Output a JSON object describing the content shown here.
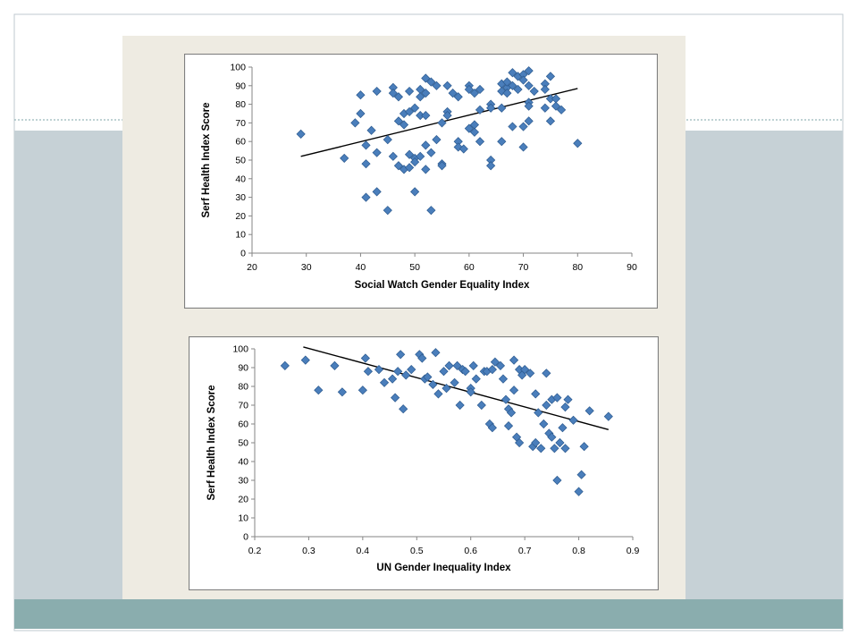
{
  "colors": {
    "slide_border": "#bfc9cf",
    "band_light": "#c6d1d6",
    "band_dark": "#8aadae",
    "dashed_line": "#7fa6a8",
    "panel": "#eeebe2",
    "marker_fill": "#4a7ebb",
    "marker_stroke": "#2c5a8f",
    "trendline": "#000000"
  },
  "chart_data": [
    {
      "type": "scatter",
      "title": "",
      "xlabel": "Social Watch Gender Equality Index",
      "ylabel": "Serf Health Index Score",
      "xlim": [
        20,
        90
      ],
      "ylim": [
        0,
        100
      ],
      "x_ticks": [
        20,
        30,
        40,
        50,
        60,
        70,
        80,
        90
      ],
      "y_ticks": [
        0,
        10,
        20,
        30,
        40,
        50,
        60,
        70,
        80,
        90,
        100
      ],
      "x_tick_labels": [
        "20",
        "30",
        "40",
        "50",
        "60",
        "70",
        "80",
        "90"
      ],
      "y_tick_labels": [
        "0",
        "10",
        "20",
        "30",
        "40",
        "50",
        "60",
        "70",
        "80",
        "90",
        "100"
      ],
      "grid": false,
      "legend": "none",
      "trendline": {
        "x": [
          29,
          80
        ],
        "y": [
          52,
          88.5
        ]
      },
      "points": [
        [
          29,
          64
        ],
        [
          37,
          51
        ],
        [
          39,
          70
        ],
        [
          40,
          85
        ],
        [
          40,
          75
        ],
        [
          41,
          58
        ],
        [
          41,
          48
        ],
        [
          41,
          30
        ],
        [
          42,
          66
        ],
        [
          43,
          87
        ],
        [
          43,
          33
        ],
        [
          43,
          54
        ],
        [
          45,
          61
        ],
        [
          45,
          23
        ],
        [
          46,
          89
        ],
        [
          46,
          86
        ],
        [
          46,
          52
        ],
        [
          47,
          84
        ],
        [
          47,
          71
        ],
        [
          47,
          47
        ],
        [
          48,
          75
        ],
        [
          48,
          69
        ],
        [
          48,
          45
        ],
        [
          49,
          87
        ],
        [
          49,
          76
        ],
        [
          49,
          53
        ],
        [
          49,
          46
        ],
        [
          50,
          78
        ],
        [
          50,
          51
        ],
        [
          50,
          49
        ],
        [
          50,
          33
        ],
        [
          51,
          88
        ],
        [
          51,
          84
        ],
        [
          51,
          74
        ],
        [
          51,
          52
        ],
        [
          52,
          94
        ],
        [
          52,
          86
        ],
        [
          52,
          74
        ],
        [
          52,
          58
        ],
        [
          52,
          45
        ],
        [
          53,
          92
        ],
        [
          53,
          54
        ],
        [
          53,
          23
        ],
        [
          54,
          90
        ],
        [
          54,
          61
        ],
        [
          55,
          70
        ],
        [
          55,
          48
        ],
        [
          55,
          47
        ],
        [
          56,
          90
        ],
        [
          56,
          76
        ],
        [
          56,
          74
        ],
        [
          57,
          86
        ],
        [
          58,
          84
        ],
        [
          58,
          60
        ],
        [
          58,
          57
        ],
        [
          59,
          56
        ],
        [
          60,
          90
        ],
        [
          60,
          88
        ],
        [
          60,
          67
        ],
        [
          61,
          86
        ],
        [
          61,
          69
        ],
        [
          61,
          65
        ],
        [
          62,
          88
        ],
        [
          62,
          77
        ],
        [
          62,
          60
        ],
        [
          64,
          80
        ],
        [
          64,
          78
        ],
        [
          64,
          50
        ],
        [
          64,
          47
        ],
        [
          66,
          91
        ],
        [
          66,
          87
        ],
        [
          66,
          78
        ],
        [
          66,
          60
        ],
        [
          67,
          89
        ],
        [
          67,
          86
        ],
        [
          67,
          92
        ],
        [
          68,
          97
        ],
        [
          68,
          90
        ],
        [
          68,
          68
        ],
        [
          69,
          95
        ],
        [
          69,
          88
        ],
        [
          70,
          96
        ],
        [
          70,
          93
        ],
        [
          70,
          68
        ],
        [
          70,
          57
        ],
        [
          71,
          98
        ],
        [
          71,
          90
        ],
        [
          71,
          81
        ],
        [
          71,
          79
        ],
        [
          71,
          71
        ],
        [
          72,
          87
        ],
        [
          74,
          91
        ],
        [
          74,
          88
        ],
        [
          74,
          78
        ],
        [
          75,
          95
        ],
        [
          75,
          83
        ],
        [
          75,
          71
        ],
        [
          76,
          83
        ],
        [
          76,
          79
        ],
        [
          77,
          77
        ],
        [
          80,
          59
        ]
      ]
    },
    {
      "type": "scatter",
      "title": "",
      "xlabel": "UN Gender Inequality Index",
      "ylabel": "Serf Health Index Score",
      "xlim": [
        0.2,
        0.9
      ],
      "ylim": [
        0,
        100
      ],
      "x_ticks": [
        0.2,
        0.3,
        0.4,
        0.5,
        0.6,
        0.7,
        0.8,
        0.9
      ],
      "y_ticks": [
        0,
        10,
        20,
        30,
        40,
        50,
        60,
        70,
        80,
        90,
        100
      ],
      "x_tick_labels": [
        "0.2",
        "0.3",
        "0.4",
        "0.5",
        "0.6",
        "0.7",
        "0.8",
        "0.9"
      ],
      "y_tick_labels": [
        "0",
        "10",
        "20",
        "30",
        "40",
        "50",
        "60",
        "70",
        "80",
        "90",
        "100"
      ],
      "grid": false,
      "legend": "none",
      "trendline": {
        "x": [
          0.29,
          0.855
        ],
        "y": [
          101,
          57
        ]
      },
      "points": [
        [
          0.256,
          91
        ],
        [
          0.294,
          94
        ],
        [
          0.318,
          78
        ],
        [
          0.348,
          91
        ],
        [
          0.362,
          77
        ],
        [
          0.4,
          78
        ],
        [
          0.405,
          95
        ],
        [
          0.41,
          88
        ],
        [
          0.43,
          89
        ],
        [
          0.44,
          82
        ],
        [
          0.455,
          84
        ],
        [
          0.46,
          74
        ],
        [
          0.465,
          88
        ],
        [
          0.47,
          97
        ],
        [
          0.475,
          68
        ],
        [
          0.48,
          86
        ],
        [
          0.49,
          89
        ],
        [
          0.505,
          97
        ],
        [
          0.51,
          95
        ],
        [
          0.515,
          84
        ],
        [
          0.52,
          85
        ],
        [
          0.53,
          81
        ],
        [
          0.535,
          98
        ],
        [
          0.54,
          76
        ],
        [
          0.55,
          88
        ],
        [
          0.555,
          79
        ],
        [
          0.56,
          91
        ],
        [
          0.57,
          82
        ],
        [
          0.575,
          91
        ],
        [
          0.58,
          70
        ],
        [
          0.585,
          89
        ],
        [
          0.59,
          88
        ],
        [
          0.6,
          79
        ],
        [
          0.6,
          77
        ],
        [
          0.605,
          91
        ],
        [
          0.61,
          84
        ],
        [
          0.62,
          70
        ],
        [
          0.625,
          88
        ],
        [
          0.63,
          88
        ],
        [
          0.635,
          60
        ],
        [
          0.64,
          58
        ],
        [
          0.64,
          89
        ],
        [
          0.645,
          93
        ],
        [
          0.655,
          91
        ],
        [
          0.66,
          84
        ],
        [
          0.665,
          73
        ],
        [
          0.67,
          68
        ],
        [
          0.67,
          59
        ],
        [
          0.675,
          66
        ],
        [
          0.68,
          94
        ],
        [
          0.68,
          78
        ],
        [
          0.685,
          53
        ],
        [
          0.69,
          50
        ],
        [
          0.69,
          89
        ],
        [
          0.695,
          86
        ],
        [
          0.7,
          89
        ],
        [
          0.71,
          87
        ],
        [
          0.715,
          48
        ],
        [
          0.72,
          76
        ],
        [
          0.72,
          50
        ],
        [
          0.725,
          66
        ],
        [
          0.73,
          47
        ],
        [
          0.735,
          60
        ],
        [
          0.74,
          70
        ],
        [
          0.74,
          87
        ],
        [
          0.745,
          55
        ],
        [
          0.75,
          73
        ],
        [
          0.75,
          53
        ],
        [
          0.755,
          47
        ],
        [
          0.76,
          74
        ],
        [
          0.76,
          30
        ],
        [
          0.765,
          50
        ],
        [
          0.77,
          58
        ],
        [
          0.775,
          47
        ],
        [
          0.775,
          69
        ],
        [
          0.78,
          73
        ],
        [
          0.79,
          62
        ],
        [
          0.8,
          24
        ],
        [
          0.805,
          33
        ],
        [
          0.81,
          48
        ],
        [
          0.82,
          67
        ],
        [
          0.855,
          64
        ]
      ]
    }
  ]
}
